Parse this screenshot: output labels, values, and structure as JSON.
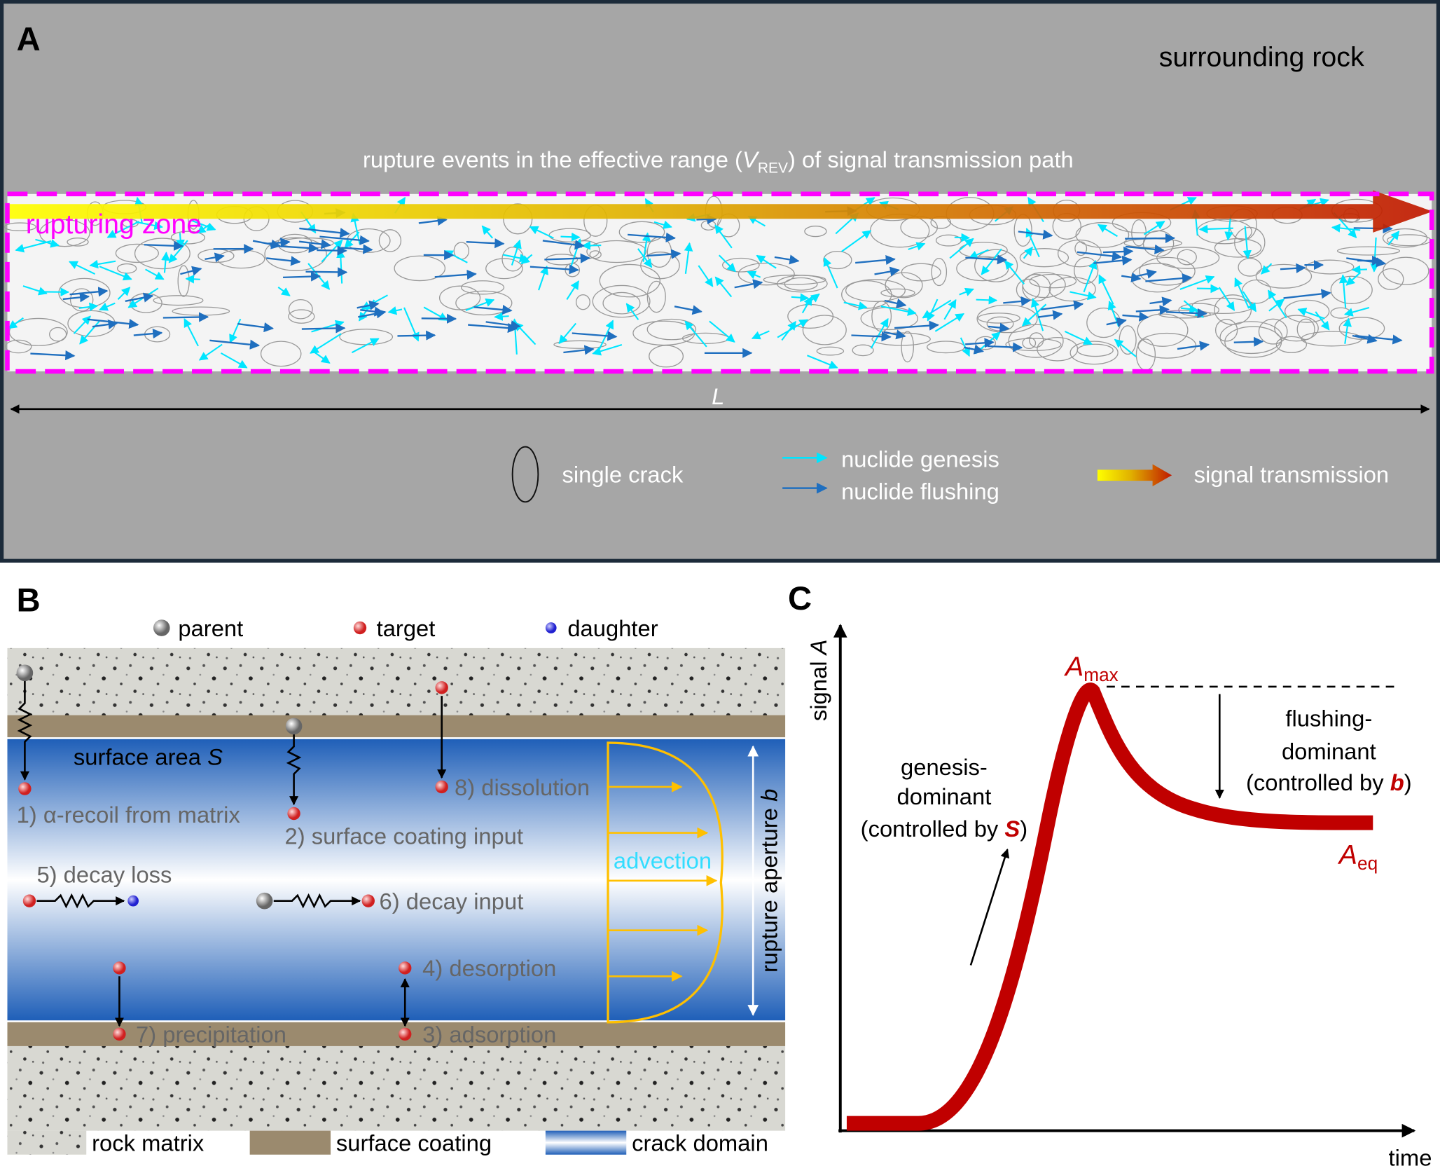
{
  "panel_a": {
    "label": "A",
    "surrounding": "surrounding rock",
    "caption": {
      "pre": "rupture events in the effective range (",
      "var": "V",
      "sub": "REV",
      "post": ") of signal transmission path"
    },
    "zone": "rupturing zone",
    "length": "L",
    "legend": {
      "crack": "single crack",
      "genesis": "nuclide genesis",
      "flushing": "nuclide flushing",
      "signal": "signal transmission"
    }
  },
  "panel_b": {
    "label": "B",
    "particles": {
      "parent": "parent",
      "target": "target",
      "daughter": "daughter"
    },
    "surface": {
      "pre": "surface area ",
      "var": "S"
    },
    "processes": {
      "p1": "1) α-recoil from matrix",
      "p2": "2) surface coating input",
      "p3": "3) adsorption",
      "p4": "4) desorption",
      "p5": "5) decay loss",
      "p6": "6) decay input",
      "p7": "7) precipitation",
      "p8": "8) dissolution"
    },
    "advection": "advection",
    "aperture": {
      "pre": "rupture aperture ",
      "var": "b"
    },
    "legend": {
      "rock": "rock matrix",
      "coating": "surface coating",
      "crack": "crack domain"
    }
  },
  "panel_c": {
    "label": "C",
    "ylabel": {
      "pre": "signal ",
      "var": "A"
    },
    "xlabel": "time",
    "amax": {
      "var": "A",
      "sub": "max"
    },
    "aeq": {
      "var": "A",
      "sub": "eq"
    },
    "genesis": {
      "l1": "genesis-",
      "l2": "dominant",
      "pre": "(controlled by ",
      "var": "S",
      "post": ")"
    },
    "flushing": {
      "l1": "flushing-",
      "l2": "dominant",
      "pre": "(controlled by ",
      "var": "b",
      "post": ")"
    }
  }
}
